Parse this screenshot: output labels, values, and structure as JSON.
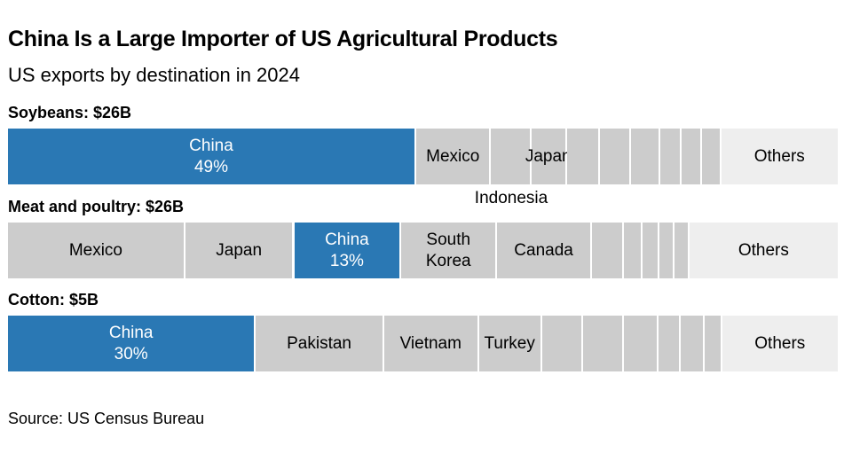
{
  "chart_data": {
    "type": "bar",
    "orientation": "horizontal-stacked-100",
    "title": "China Is a Large Importer of US Agricultural Products",
    "subtitle": "US exports by destination in 2024",
    "source": "Source: US Census Bureau",
    "colors": {
      "china": "#2a78b4",
      "other_country": "#cccccc",
      "others": "#eeeeee",
      "divider": "#ffffff"
    },
    "groups": [
      {
        "label": "Soybeans: $26B",
        "segments": [
          {
            "name": "China",
            "value": 49,
            "value_label": "49%",
            "highlight": true
          },
          {
            "name": "Mexico",
            "value": 9.0
          },
          {
            "name": "Indonesia",
            "value": 4.8,
            "label_outside": true
          },
          {
            "name": "Japan",
            "value": 4.3
          },
          {
            "name": "",
            "value": 4.0
          },
          {
            "name": "",
            "value": 3.7
          },
          {
            "name": "",
            "value": 3.5
          },
          {
            "name": "",
            "value": 2.6
          },
          {
            "name": "",
            "value": 2.4
          },
          {
            "name": "",
            "value": 2.3
          },
          {
            "name": "Others",
            "value": 14.0,
            "others": true
          }
        ]
      },
      {
        "label": "Meat and poultry: $26B",
        "segments": [
          {
            "name": "Mexico",
            "value": 21.5
          },
          {
            "name": "Japan",
            "value": 13.2
          },
          {
            "name": "China",
            "value": 13,
            "value_label": "13%",
            "highlight": true
          },
          {
            "name": "South Korea",
            "value": 11.6
          },
          {
            "name": "Canada",
            "value": 11.5
          },
          {
            "name": "",
            "value": 3.9
          },
          {
            "name": "",
            "value": 2.2
          },
          {
            "name": "",
            "value": 2.1
          },
          {
            "name": "",
            "value": 1.8
          },
          {
            "name": "",
            "value": 1.8
          },
          {
            "name": "Others",
            "value": 18.0,
            "others": true
          }
        ]
      },
      {
        "label": "Cotton: $5B",
        "segments": [
          {
            "name": "China",
            "value": 30,
            "value_label": "30%",
            "highlight": true
          },
          {
            "name": "Pakistan",
            "value": 15.5
          },
          {
            "name": "Vietnam",
            "value": 11.5
          },
          {
            "name": "Turkey",
            "value": 7.6
          },
          {
            "name": "",
            "value": 5.0
          },
          {
            "name": "",
            "value": 4.9
          },
          {
            "name": "",
            "value": 4.2
          },
          {
            "name": "",
            "value": 2.7
          },
          {
            "name": "",
            "value": 2.9
          },
          {
            "name": "",
            "value": 2.1
          },
          {
            "name": "Others",
            "value": 14.0,
            "others": true
          }
        ]
      }
    ]
  }
}
